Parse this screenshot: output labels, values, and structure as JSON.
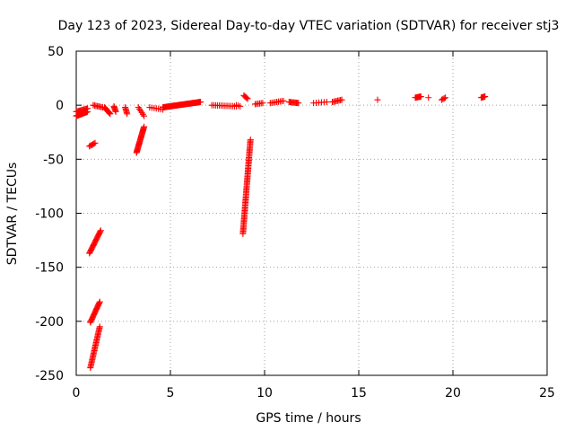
{
  "chart_data": {
    "type": "scatter",
    "title": "Day 123 of 2023, Sidereal Day-to-day VTEC variation (SDTVAR) for receiver stj3",
    "xlabel": "GPS time / hours",
    "ylabel": "SDTVAR / TECUs",
    "xlim": [
      0,
      25
    ],
    "ylim": [
      -250,
      50
    ],
    "xticks": [
      0,
      5,
      10,
      15,
      20,
      25
    ],
    "yticks": [
      -250,
      -200,
      -150,
      -100,
      -50,
      0,
      50
    ],
    "grid": true,
    "marker": "plus",
    "color": "#ff0000",
    "segments": [
      {
        "x": [
          0.0,
          0.6
        ],
        "y": [
          -10,
          -6
        ],
        "n": 24
      },
      {
        "x": [
          0.0,
          0.6
        ],
        "y": [
          -6,
          -3
        ],
        "n": 12
      },
      {
        "x": [
          0.7,
          1.0
        ],
        "y": [
          -38,
          -35
        ],
        "n": 6
      },
      {
        "x": [
          0.7,
          1.3
        ],
        "y": [
          -137,
          -116
        ],
        "n": 22
      },
      {
        "x": [
          0.75,
          1.25
        ],
        "y": [
          -201,
          -182
        ],
        "n": 20
      },
      {
        "x": [
          0.75,
          1.25
        ],
        "y": [
          -243,
          -205
        ],
        "n": 32
      },
      {
        "x": [
          0.9,
          1.4
        ],
        "y": [
          0,
          -2
        ],
        "n": 8
      },
      {
        "x": [
          1.5,
          1.8
        ],
        "y": [
          -2,
          -8
        ],
        "n": 10
      },
      {
        "x": [
          2.0,
          2.1
        ],
        "y": [
          -1,
          -6
        ],
        "n": 6
      },
      {
        "x": [
          2.6,
          2.7
        ],
        "y": [
          -2,
          -8
        ],
        "n": 6
      },
      {
        "x": [
          3.2,
          3.6
        ],
        "y": [
          -44,
          -20
        ],
        "n": 28
      },
      {
        "x": [
          3.3,
          3.6
        ],
        "y": [
          -2,
          -10
        ],
        "n": 6
      },
      {
        "x": [
          3.9,
          4.6
        ],
        "y": [
          -2,
          -4
        ],
        "n": 7
      },
      {
        "x": [
          4.6,
          6.6
        ],
        "y": [
          -2,
          3
        ],
        "n": 55
      },
      {
        "x": [
          7.2,
          8.5
        ],
        "y": [
          0,
          -1
        ],
        "n": 14
      },
      {
        "x": [
          8.5,
          8.7
        ],
        "y": [
          0,
          -1
        ],
        "n": 3
      },
      {
        "x": [
          8.9,
          9.1
        ],
        "y": [
          9,
          6
        ],
        "n": 5
      },
      {
        "x": [
          8.85,
          9.25
        ],
        "y": [
          -119,
          -32
        ],
        "n": 70
      },
      {
        "x": [
          9.5,
          9.9
        ],
        "y": [
          1,
          2
        ],
        "n": 6
      },
      {
        "x": [
          10.3,
          11.0
        ],
        "y": [
          2,
          4
        ],
        "n": 9
      },
      {
        "x": [
          11.3,
          11.8
        ],
        "y": [
          3,
          2
        ],
        "n": 10
      },
      {
        "x": [
          12.6,
          13.3
        ],
        "y": [
          2,
          3
        ],
        "n": 6
      },
      {
        "x": [
          13.6,
          14.1
        ],
        "y": [
          3,
          5
        ],
        "n": 8
      },
      {
        "x": [
          16.0,
          16.0
        ],
        "y": [
          5,
          5
        ],
        "n": 1
      },
      {
        "x": [
          18.0,
          18.3
        ],
        "y": [
          7,
          8
        ],
        "n": 8
      },
      {
        "x": [
          18.7,
          18.7
        ],
        "y": [
          7,
          7
        ],
        "n": 1
      },
      {
        "x": [
          19.4,
          19.6
        ],
        "y": [
          5,
          7
        ],
        "n": 4
      },
      {
        "x": [
          21.5,
          21.7
        ],
        "y": [
          7,
          8
        ],
        "n": 6
      }
    ]
  }
}
